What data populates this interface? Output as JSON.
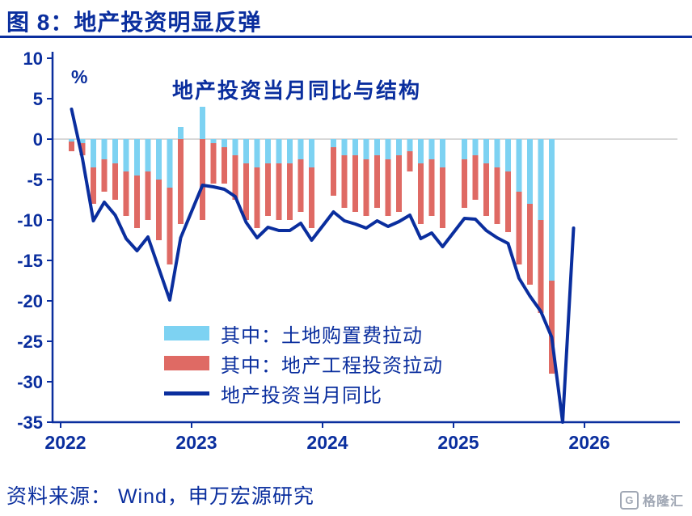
{
  "header": {
    "title": "图 8：地产投资明显反弹"
  },
  "source": {
    "text": "资料来源： Wind，申万宏源研究"
  },
  "watermark": {
    "icon_letter": "G",
    "text": "格隆汇"
  },
  "chart_data": {
    "type": "combo",
    "title": "地产投资当月同比与结构",
    "unit": "%",
    "legend_position": "inside-left-bottom",
    "grid": "zero-line-only",
    "ylim": [
      -35,
      10
    ],
    "y_ticks": [
      10,
      5,
      0,
      -5,
      -10,
      -15,
      -20,
      -25,
      -30,
      -35
    ],
    "x_ticks": [
      "2022",
      "2023",
      "2024",
      "2025",
      "2026"
    ],
    "colors": {
      "axis": "#0A2E9E",
      "grid": "#CCCCCC",
      "bar_land": "#7DD2F2",
      "bar_engineering": "#DF6A64",
      "line_total": "#0A2E9E"
    },
    "months": [
      "2022-02",
      "2022-03",
      "2022-04",
      "2022-05",
      "2022-06",
      "2022-07",
      "2022-08",
      "2022-09",
      "2022-10",
      "2022-11",
      "2022-12",
      "2023-02",
      "2023-03",
      "2023-04",
      "2023-05",
      "2023-06",
      "2023-07",
      "2023-08",
      "2023-09",
      "2023-10",
      "2023-11",
      "2023-12",
      "2024-02",
      "2024-03",
      "2024-04",
      "2024-05",
      "2024-06",
      "2024-07",
      "2024-08",
      "2024-09",
      "2024-10",
      "2024-11",
      "2024-12",
      "2025-02",
      "2025-03",
      "2025-04",
      "2025-05",
      "2025-06",
      "2025-07",
      "2025-08",
      "2025-09",
      "2025-10",
      "2025-11",
      "2025-12"
    ],
    "series": [
      {
        "name": "其中：土地购置费拉动",
        "type": "bar",
        "color": "#7DD2F2",
        "values": [
          -0.3,
          -0.5,
          -3.5,
          -2.5,
          -3.0,
          -4.0,
          -4.5,
          -4.0,
          -5.0,
          -6.0,
          1.5,
          4.0,
          -0.5,
          -1.0,
          -2.0,
          -3.0,
          -3.5,
          -3.0,
          -3.0,
          -3.0,
          -2.5,
          -3.5,
          -1.0,
          -2.0,
          -2.0,
          -2.5,
          -2.0,
          -2.5,
          -2.0,
          -1.5,
          -3.0,
          -2.5,
          -3.5,
          -2.5,
          -2.0,
          -3.0,
          -3.5,
          -4.0,
          -6.5,
          -8.0,
          -10.0,
          -17.5,
          null,
          null
        ]
      },
      {
        "name": "其中：地产工程投资拉动",
        "type": "bar",
        "color": "#DF6A64",
        "values": [
          -1.2,
          -1.5,
          -4.5,
          -4.0,
          -4.5,
          -5.5,
          -6.5,
          -6.0,
          -7.5,
          -9.5,
          -10.5,
          -10.0,
          -5.0,
          -4.5,
          -5.5,
          -7.0,
          -7.5,
          -6.5,
          -7.0,
          -7.0,
          -6.5,
          -7.5,
          -6.0,
          -6.5,
          -7.0,
          -7.0,
          -6.5,
          -7.0,
          -7.0,
          -2.5,
          -7.5,
          -7.0,
          -7.5,
          -6.0,
          -5.5,
          -6.5,
          -7.0,
          -7.5,
          -9.0,
          -10.0,
          -11.5,
          -11.5,
          null,
          null
        ]
      },
      {
        "name": "地产投资当月同比",
        "type": "line",
        "color": "#0A2E9E",
        "values": [
          3.7,
          -2.4,
          -10.1,
          -7.8,
          -9.4,
          -12.3,
          -13.8,
          -12.1,
          -16.0,
          -19.9,
          -12.2,
          -5.7,
          -5.9,
          -6.2,
          -7.1,
          -10.3,
          -12.2,
          -10.9,
          -11.3,
          -11.3,
          -10.4,
          -12.5,
          -9.0,
          -10.1,
          -10.5,
          -11.0,
          -10.1,
          -10.8,
          -10.2,
          -9.4,
          -12.3,
          -11.6,
          -13.3,
          -9.8,
          -9.9,
          -11.3,
          -12.2,
          -12.9,
          -17.2,
          -19.4,
          -21.3,
          -24.5,
          -35.0,
          -11.0
        ]
      }
    ]
  }
}
